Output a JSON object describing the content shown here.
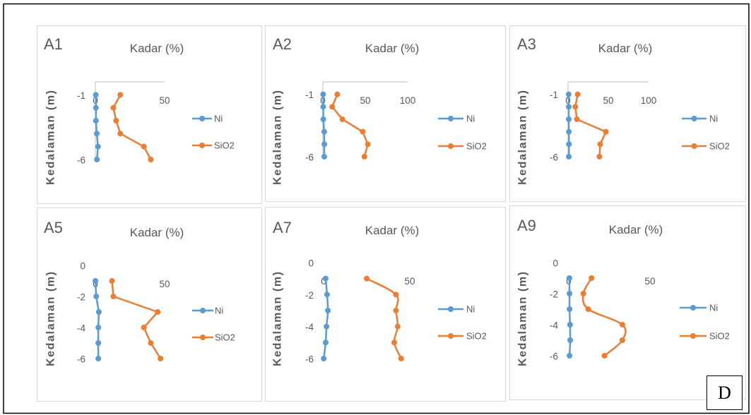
{
  "figure_label": "D",
  "chart_data": [
    {
      "type": "line",
      "title": "A1",
      "xlabel": "Kadar (%)",
      "ylabel": "Kedalaman (m)",
      "x_axis_position": "top",
      "xlim": [
        0,
        50
      ],
      "ylim": [
        -6,
        0
      ],
      "x_ticks": [
        0,
        50
      ],
      "y_ticks": [
        -1,
        -6
      ],
      "axis_lines": true,
      "smooth": false,
      "legend": "right",
      "y": [
        -1,
        -2,
        -3,
        -4,
        -5,
        -6
      ],
      "series": [
        {
          "name": "Ni",
          "color": "#5B9BD5",
          "x": [
            0.3,
            0.4,
            0.4,
            1.0,
            1.9,
            1.1
          ]
        },
        {
          "name": "SiO2",
          "color": "#ED7D31",
          "x": [
            18,
            13,
            15,
            18,
            35,
            40
          ]
        }
      ]
    },
    {
      "type": "line",
      "title": "A2",
      "xlabel": "Kadar (%)",
      "ylabel": "Kedalaman (m)",
      "x_axis_position": "top",
      "xlim": [
        0,
        100
      ],
      "ylim": [
        -6,
        0
      ],
      "x_ticks": [
        0,
        50,
        100
      ],
      "y_ticks": [
        -1,
        -6
      ],
      "axis_lines": true,
      "smooth": false,
      "legend": "right",
      "y": [
        -1,
        -2,
        -3,
        -4,
        -5,
        -6
      ],
      "series": [
        {
          "name": "Ni",
          "color": "#5B9BD5",
          "x": [
            0.3,
            0.4,
            0.5,
            1.6,
            1.7,
            1.6
          ]
        },
        {
          "name": "SiO2",
          "color": "#ED7D31",
          "x": [
            17,
            11,
            23,
            47,
            53,
            49
          ]
        }
      ]
    },
    {
      "type": "line",
      "title": "A3",
      "xlabel": "Kadar (%)",
      "ylabel": "Kedalaman (m)",
      "x_axis_position": "top",
      "xlim": [
        0,
        100
      ],
      "ylim": [
        -6,
        0
      ],
      "x_ticks": [
        0,
        50,
        100
      ],
      "y_ticks": [
        -1,
        -6
      ],
      "axis_lines": true,
      "smooth": false,
      "legend": "right",
      "y": [
        -1,
        -2,
        -3,
        -4,
        -5,
        -6
      ],
      "series": [
        {
          "name": "Ni",
          "color": "#5B9BD5",
          "x": [
            0.8,
            0.9,
            0.9,
            1.0,
            1.2,
            1.0
          ]
        },
        {
          "name": "SiO2",
          "color": "#ED7D31",
          "x": [
            12,
            9,
            11,
            47,
            40,
            39
          ]
        }
      ]
    },
    {
      "type": "line",
      "title": "A5",
      "xlabel": "Kadar (%)",
      "ylabel": "Kedalaman (m)",
      "x_axis_position": "top",
      "xlim": [
        0,
        50
      ],
      "ylim": [
        -6,
        0
      ],
      "x_ticks": [
        0,
        50
      ],
      "y_ticks": [
        0,
        -2,
        -4,
        -6
      ],
      "axis_lines": false,
      "smooth": false,
      "legend": "right",
      "y": [
        -1,
        -2,
        -3,
        -4,
        -5,
        -6
      ],
      "series": [
        {
          "name": "Ni",
          "color": "#5B9BD5",
          "x": [
            0,
            0.6,
            2.5,
            2.1,
            2.1,
            2.1
          ]
        },
        {
          "name": "SiO2",
          "color": "#ED7D31",
          "x": [
            12,
            13,
            45,
            35,
            40,
            47
          ]
        }
      ]
    },
    {
      "type": "line",
      "title": "A7",
      "xlabel": "Kadar (%)",
      "ylabel": "Kedalaman (m)",
      "x_axis_position": "top",
      "xlim": [
        0,
        50
      ],
      "ylim": [
        -6,
        0
      ],
      "x_ticks": [
        0,
        50
      ],
      "y_ticks": [
        0,
        -2,
        -4,
        -6
      ],
      "axis_lines": false,
      "smooth": true,
      "legend": "right",
      "y": [
        -1,
        -2,
        -3,
        -4,
        -5,
        -6
      ],
      "series": [
        {
          "name": "Ni",
          "color": "#5B9BD5",
          "x": [
            1.2,
            2.0,
            2.5,
            1.7,
            1.2,
            0.1
          ]
        },
        {
          "name": "SiO2",
          "color": "#ED7D31",
          "x": [
            25,
            42,
            42,
            43,
            41,
            45
          ]
        }
      ]
    },
    {
      "type": "line",
      "title": "A9",
      "xlabel": "Kadar (%)",
      "ylabel": "Kedalaman (m)",
      "x_axis_position": "top",
      "xlim": [
        0,
        50
      ],
      "ylim": [
        -6,
        0
      ],
      "x_ticks": [
        0,
        50
      ],
      "y_ticks": [
        0,
        -2,
        -4,
        -6
      ],
      "axis_lines": false,
      "smooth": true,
      "legend": "right",
      "y": [
        -1,
        -2,
        -3,
        -4,
        -5,
        -6
      ],
      "series": [
        {
          "name": "Ni",
          "color": "#5B9BD5",
          "x": [
            0.4,
            0.5,
            0.5,
            0.8,
            0.9,
            0.5
          ]
        },
        {
          "name": "SiO2",
          "color": "#ED7D31",
          "x": [
            14,
            9,
            12,
            33,
            33,
            22
          ]
        }
      ]
    }
  ]
}
